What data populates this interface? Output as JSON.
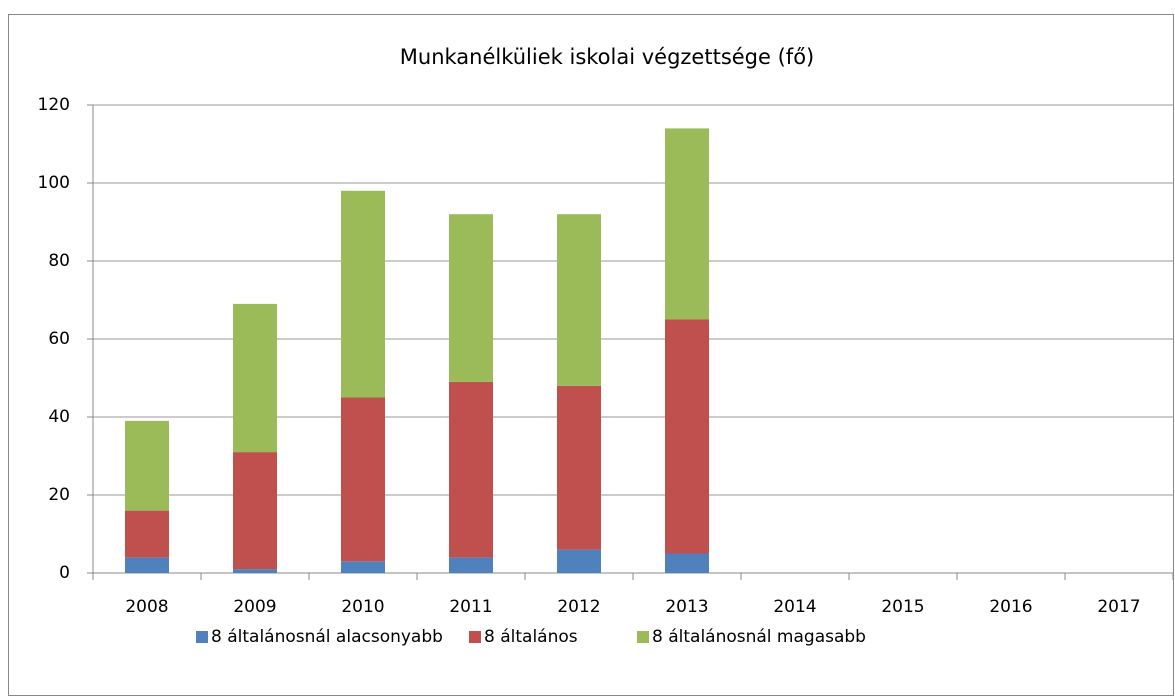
{
  "chart_data": {
    "type": "stacked_bar",
    "title": "Munkanélküliek iskolai végzettsége (fő)",
    "categories": [
      "2008",
      "2009",
      "2010",
      "2011",
      "2012",
      "2013",
      "2014",
      "2015",
      "2016",
      "2017"
    ],
    "series": [
      {
        "name": "8 általánosnál alacsonyabb",
        "color": "#4f81bd",
        "values": [
          4,
          1,
          3,
          4,
          6,
          5,
          null,
          null,
          null,
          null
        ]
      },
      {
        "name": "8 általános",
        "color": "#c0504d",
        "values": [
          12,
          30,
          42,
          45,
          42,
          60,
          null,
          null,
          null,
          null
        ]
      },
      {
        "name": "8 általánosnál magasabb",
        "color": "#9bbb59",
        "values": [
          23,
          38,
          53,
          43,
          44,
          49,
          null,
          null,
          null,
          null
        ]
      }
    ],
    "ylim": [
      0,
      120
    ],
    "yticks": [
      0,
      20,
      40,
      60,
      80,
      100,
      120
    ],
    "grid": true,
    "legend": "bottom"
  }
}
